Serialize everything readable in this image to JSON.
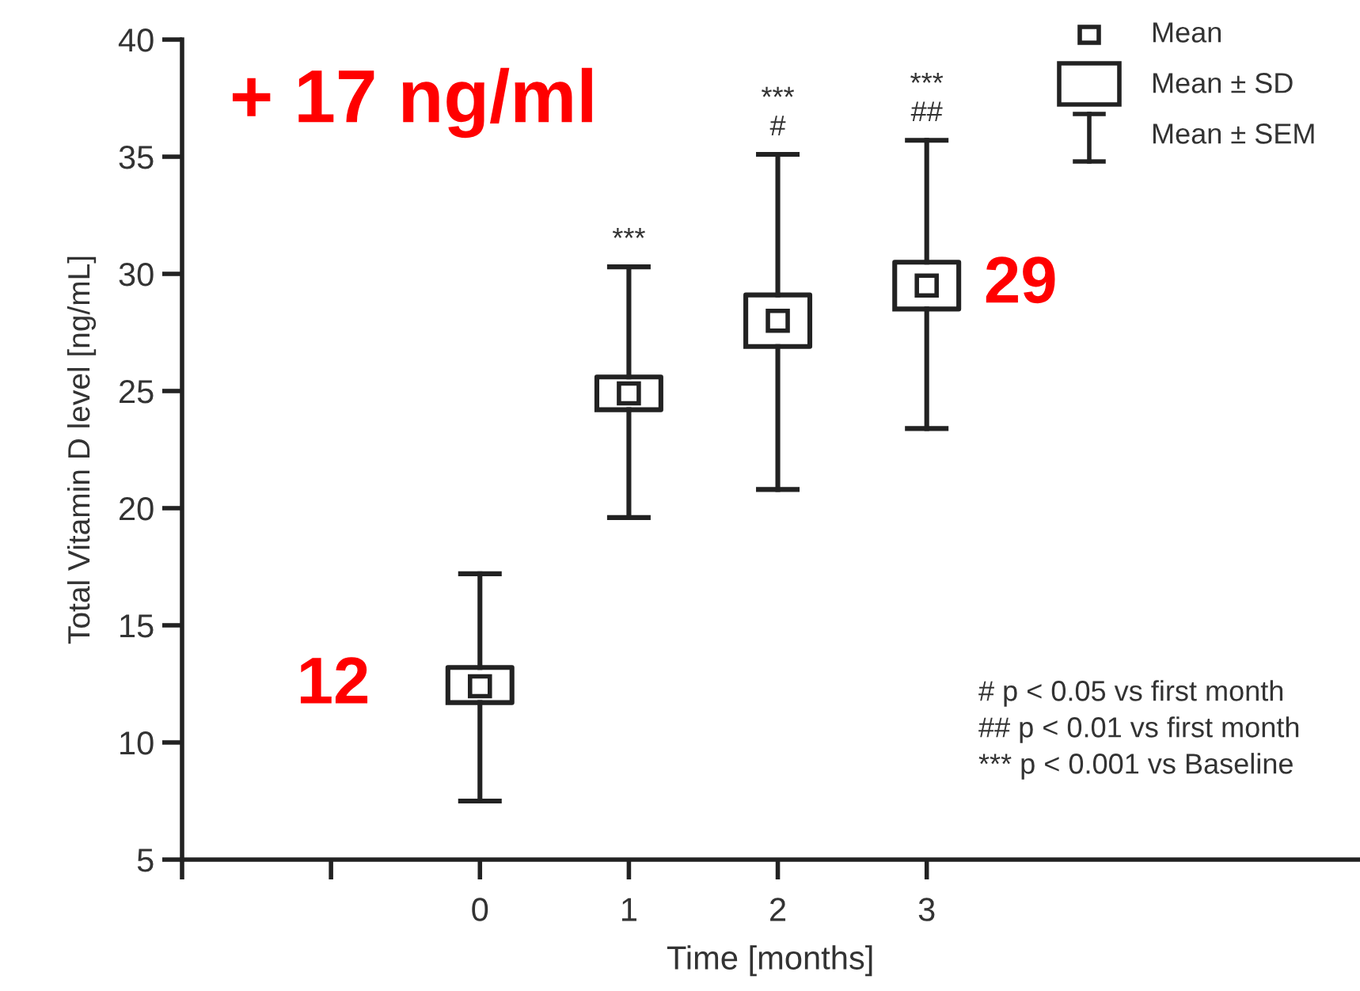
{
  "chart_data": {
    "type": "box",
    "xlabel": "Time [months]",
    "ylabel": "Total Vitamin D level [ng/mL]",
    "categories": [
      null,
      null,
      "0",
      "1",
      "2",
      "3"
    ],
    "boxes": [
      null,
      null,
      {
        "low": 7.5,
        "q1": 11.7,
        "median": 12.4,
        "q3": 13.2,
        "high": 17.2
      },
      {
        "low": 19.6,
        "q1": 24.2,
        "median": 24.9,
        "q3": 25.6,
        "high": 30.3
      },
      {
        "low": 20.8,
        "q1": 26.9,
        "median": 28.0,
        "q3": 29.1,
        "high": 35.1
      },
      {
        "low": 23.4,
        "q1": 28.5,
        "median": 29.5,
        "q3": 30.5,
        "high": 35.7
      }
    ],
    "ylim": [
      5,
      40
    ],
    "yticks": [
      5,
      10,
      15,
      20,
      25,
      30,
      35,
      40
    ],
    "grid": false,
    "annotations": [
      "+ 17 ng/ml",
      {
        "text": "12",
        "x": "0",
        "y": 12.4
      },
      {
        "text": "29",
        "x": "3",
        "y": 29.5
      },
      {
        "text": "***",
        "x": "1",
        "y": 30.3
      },
      {
        "text": "***\n#",
        "x": "2",
        "y": 35.1
      },
      {
        "text": "***\n##",
        "x": "3",
        "y": 35.7
      },
      "Mean",
      "Mean ± SD",
      "Mean ± SEM",
      "# p < 0.05 vs first month",
      "## p < 0.01 vs first month",
      "*** p < 0.001 vs Baseline"
    ]
  }
}
